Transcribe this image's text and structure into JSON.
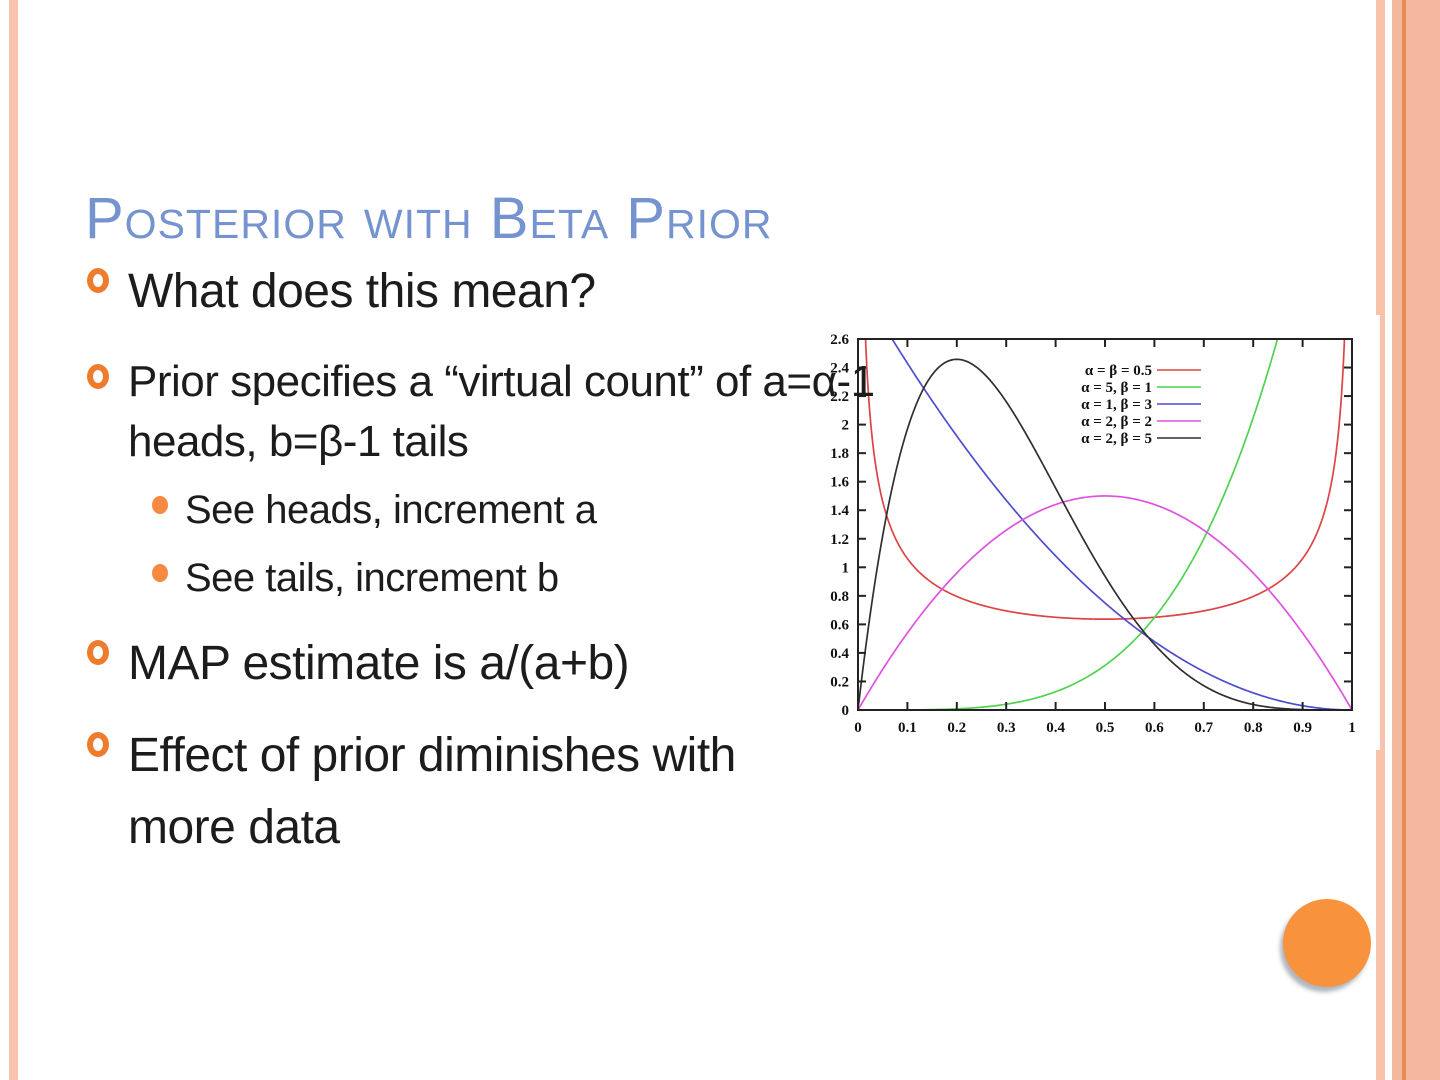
{
  "slide": {
    "title": "Posterior with Beta Prior",
    "bullets": [
      {
        "level": 1,
        "text": "What does this mean?"
      },
      {
        "level": 1,
        "text": "Prior specifies a “virtual count” of a=α-1 heads, b=β-1 tails"
      },
      {
        "level": 2,
        "text": "See heads, increment a"
      },
      {
        "level": 2,
        "text": "See tails, increment b"
      },
      {
        "level": 1,
        "text": "MAP estimate is a/(a+b)"
      },
      {
        "level": 1,
        "text": "Effect of prior diminishes with more data"
      }
    ]
  },
  "theme": {
    "title_color": "#7593cf",
    "bullet_ring_color": "#ee7c2c",
    "bullet_dot_color": "#f58a40",
    "stripe_color": "#f8c3ab",
    "band_color": "#f3b89e",
    "band_line_color": "#e78b52",
    "page_circle_color": "#f8923c",
    "text_color": "#1c1c1c"
  },
  "chart_data": {
    "type": "line",
    "title": "",
    "xlabel": "",
    "ylabel": "",
    "xlim": [
      0,
      1
    ],
    "ylim": [
      0,
      2.6
    ],
    "xtick_labels": [
      "0",
      "0.1",
      "0.2",
      "0.3",
      "0.4",
      "0.5",
      "0.6",
      "0.7",
      "0.8",
      "0.9",
      "1"
    ],
    "ytick_labels": [
      "0",
      "0.2",
      "0.4",
      "0.6",
      "0.8",
      "1",
      "1.2",
      "1.4",
      "1.6",
      "1.8",
      "2",
      "2.2",
      "2.4",
      "2.6"
    ],
    "grid": false,
    "legend_position": "top-inside-right",
    "series": [
      {
        "name": "α = β = 0.5",
        "alpha": 0.5,
        "beta": 0.5,
        "color": "#dd4444"
      },
      {
        "name": "α = 5, β = 1",
        "alpha": 5,
        "beta": 1,
        "color": "#4fd34f"
      },
      {
        "name": "α = 1, β = 3",
        "alpha": 1,
        "beta": 3,
        "color": "#4d4dd0"
      },
      {
        "name": "α = 2, β = 2",
        "alpha": 2,
        "beta": 2,
        "color": "#df52df"
      },
      {
        "name": "α = 2, β = 5",
        "alpha": 2,
        "beta": 5,
        "color": "#2f2f2f"
      }
    ]
  }
}
